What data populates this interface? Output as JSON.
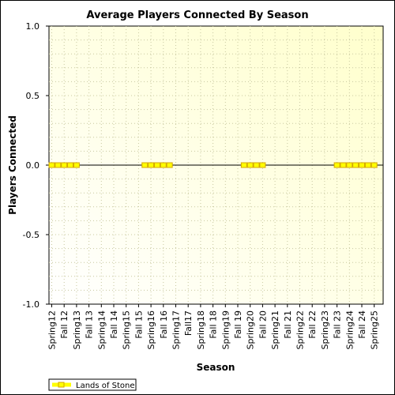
{
  "chart_data": {
    "type": "line",
    "title": "Average Players Connected By Season",
    "xlabel": "Season",
    "ylabel": "Players Connected",
    "ylim": [
      -1.0,
      1.0
    ],
    "yticks": [
      "1.0",
      "0.5",
      "0.0",
      "-0.5",
      "-1.0"
    ],
    "ytick_values": [
      1.0,
      0.5,
      0.0,
      -0.5,
      -1.0
    ],
    "categories": [
      "Spring12",
      "Fall 12",
      "Spring13",
      "Fall 13",
      "Spring14",
      "Fall 14",
      "Spring15",
      "Fall 15",
      "Spring16",
      "Fall 16",
      "Spring17",
      "Fall17",
      "Spring18",
      "Fall 18",
      "Spring19",
      "Fall 19",
      "Spring20",
      "Fall 20",
      "Spring21",
      "Fall 21",
      "Spring22",
      "Fall 22",
      "Spring23",
      "Fall 23",
      "Spring24",
      "Fall 24",
      "Spring25"
    ],
    "series": [
      {
        "name": "Lands of Stone",
        "color": "#ffff00",
        "marker_color": "#d4a600",
        "points": [
          {
            "x": 0.0,
            "y": 0.0
          },
          {
            "x": 0.5,
            "y": 0.0
          },
          {
            "x": 1.0,
            "y": 0.0
          },
          {
            "x": 1.5,
            "y": 0.0
          },
          {
            "x": 2.0,
            "y": 0.0
          },
          {
            "x": 7.5,
            "y": 0.0
          },
          {
            "x": 8.0,
            "y": 0.0
          },
          {
            "x": 8.5,
            "y": 0.0
          },
          {
            "x": 9.0,
            "y": 0.0
          },
          {
            "x": 9.5,
            "y": 0.0
          },
          {
            "x": 15.5,
            "y": 0.0
          },
          {
            "x": 16.0,
            "y": 0.0
          },
          {
            "x": 16.5,
            "y": 0.0
          },
          {
            "x": 17.0,
            "y": 0.0
          },
          {
            "x": 23.0,
            "y": 0.0
          },
          {
            "x": 23.5,
            "y": 0.0
          },
          {
            "x": 24.0,
            "y": 0.0
          },
          {
            "x": 24.5,
            "y": 0.0
          },
          {
            "x": 25.0,
            "y": 0.0
          },
          {
            "x": 25.5,
            "y": 0.0
          },
          {
            "x": 26.0,
            "y": 0.0
          }
        ]
      }
    ],
    "grid": true,
    "legend": "bottom-left",
    "colors": {
      "plot_background_top_right": "#ffffcc",
      "plot_background_bottom_left": "#ffffff",
      "zero_line": "#000000",
      "grid": "#c8c8a0"
    }
  }
}
